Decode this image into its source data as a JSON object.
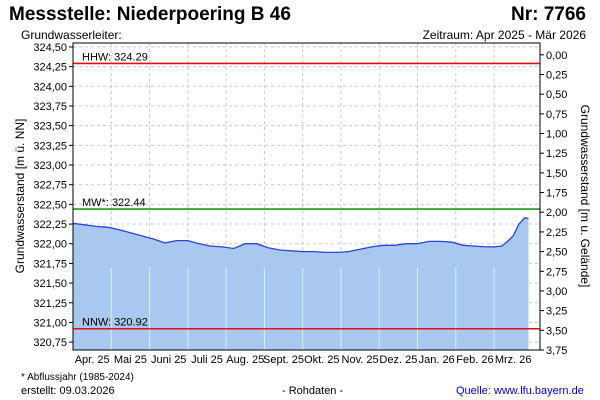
{
  "header": {
    "station": "Messstelle: Niederpoering B 46",
    "number": "Nr: 7766",
    "aquifer_label": "Grundwasserleiter:",
    "period": "Zeitraum: Apr 2025 - Mär 2026"
  },
  "footer": {
    "footnote": "* Abflussjahr (1985-2024)",
    "created": "erstellt:  09.03.2026",
    "raw_data": "- Rohdaten -",
    "source_label": "Quelle:",
    "source_link": "www.lfu.bayern.de"
  },
  "colors": {
    "area_fill": "#a9c8ef",
    "series_line": "#2b44d6",
    "hhw_line": "#e01010",
    "mw_line": "#1a9a1a",
    "nnw_line": "#e01010",
    "grid": "#c8c8c8"
  },
  "chart_data": {
    "type": "area",
    "ylabel": "Grundwasserstand [m ü. NN]",
    "y2label": "Grundwasserstand [m u. Gelände]",
    "ylim": [
      320.65,
      324.55
    ],
    "y_ticks": [
      "324,50",
      "324,25",
      "324,00",
      "323,75",
      "323,50",
      "323,25",
      "323,00",
      "322,75",
      "322,50",
      "322,25",
      "322,00",
      "321,75",
      "321,50",
      "321,25",
      "321,00",
      "320,75"
    ],
    "y_tick_values": [
      324.5,
      324.25,
      324.0,
      323.75,
      323.5,
      323.25,
      323.0,
      322.75,
      322.5,
      322.25,
      322.0,
      321.75,
      321.5,
      321.25,
      321.0,
      320.75
    ],
    "y2_ticks": [
      "0,00",
      "0,25",
      "0,50",
      "0,75",
      "1,00",
      "1,25",
      "1,50",
      "1,75",
      "2,00",
      "2,25",
      "2,50",
      "2,75",
      "3,00",
      "3,25",
      "3,50",
      "3,75"
    ],
    "y2_tick_values": [
      0.0,
      0.25,
      0.5,
      0.75,
      1.0,
      1.25,
      1.5,
      1.75,
      2.0,
      2.25,
      2.5,
      2.75,
      3.0,
      3.25,
      3.5,
      3.75
    ],
    "y2_reference_level": 324.4,
    "x_ticks": [
      "Apr. 25",
      "Mai 25",
      "Juni 25",
      "Juli 25",
      "Aug. 25",
      "Sept. 25",
      "Okt. 25",
      "Nov. 25",
      "Dez. 25",
      "Jan. 26",
      "Feb. 26",
      "Mrz. 26"
    ],
    "xlim": [
      0,
      12.2
    ],
    "reference_lines": [
      {
        "label": "HHW: 324.29",
        "value": 324.29,
        "color_key": "hhw_line"
      },
      {
        "label": "MW*: 322.44",
        "value": 322.44,
        "color_key": "mw_line"
      },
      {
        "label": "NNW: 320.92",
        "value": 320.92,
        "color_key": "nnw_line"
      }
    ],
    "series": [
      {
        "x": [
          0,
          0.3,
          0.6,
          0.9,
          1.2,
          1.5,
          1.8,
          2.1,
          2.4,
          2.7,
          3.0,
          3.3,
          3.6,
          3.9,
          4.2,
          4.5,
          4.8,
          5.1,
          5.4,
          5.7,
          6.0,
          6.3,
          6.6,
          6.9,
          7.2,
          7.5,
          7.8,
          8.1,
          8.4,
          8.7,
          9.0,
          9.3,
          9.6,
          9.9,
          10.2,
          10.5,
          10.8,
          11.0,
          11.2,
          11.35,
          11.5,
          11.65,
          11.8,
          11.9
        ],
        "values": [
          322.26,
          322.24,
          322.22,
          322.21,
          322.18,
          322.14,
          322.1,
          322.06,
          322.01,
          322.04,
          322.04,
          322.0,
          321.97,
          321.96,
          321.94,
          322.0,
          322.0,
          321.95,
          321.92,
          321.91,
          321.9,
          321.9,
          321.89,
          321.89,
          321.9,
          321.93,
          321.96,
          321.98,
          321.98,
          322.0,
          322.0,
          322.03,
          322.03,
          322.02,
          321.98,
          321.97,
          321.96,
          321.96,
          321.97,
          322.03,
          322.1,
          322.25,
          322.33,
          322.32
        ]
      }
    ],
    "grid": true
  }
}
